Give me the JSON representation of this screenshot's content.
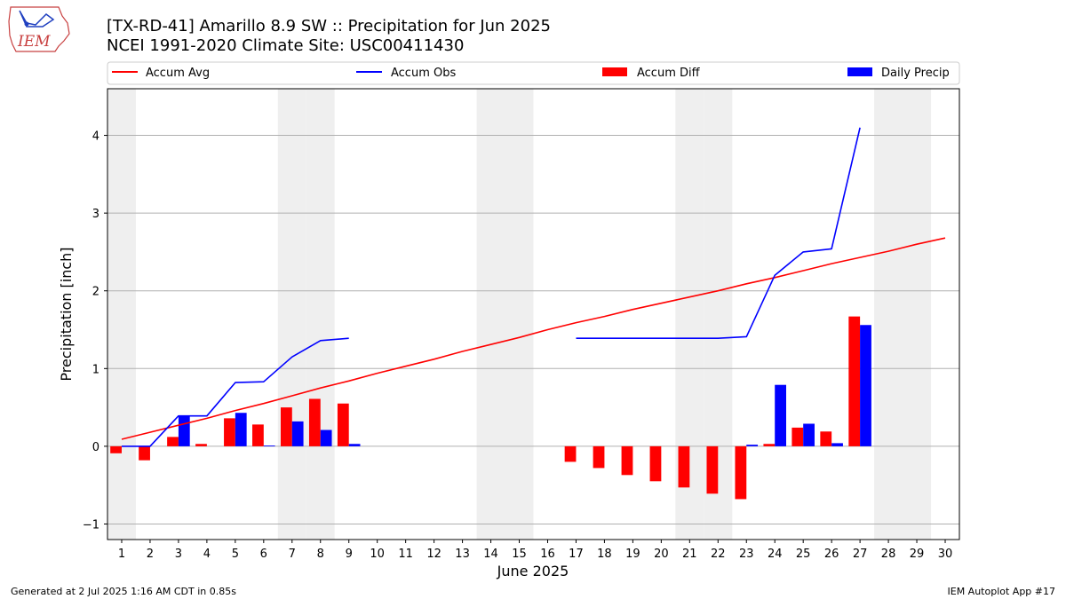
{
  "header": {
    "title_line1": "[TX-RD-41] Amarillo 8.9 SW :: Precipitation for Jun 2025",
    "title_line2": "NCEI 1991-2020 Climate Site: USC00411430",
    "logo_text": "IEM"
  },
  "footer": {
    "left": "Generated at 2 Jul 2025 1:16 AM CDT in 0.85s",
    "right": "IEM Autoplot App #17"
  },
  "colors": {
    "avg": "#ff0000",
    "obs": "#0000ff",
    "diff": "#ff0000",
    "daily": "#0000ff",
    "weekend": "#efefef",
    "grid": "#b0b0b0"
  },
  "chart_data": {
    "type": "bar",
    "xlabel": "June 2025",
    "ylabel": "Precipitation [inch]",
    "ylim": [
      -1.2,
      4.6
    ],
    "xlim": [
      0.5,
      30.5
    ],
    "yticks": [
      -1,
      0,
      1,
      2,
      3,
      4
    ],
    "days": [
      1,
      2,
      3,
      4,
      5,
      6,
      7,
      8,
      9,
      10,
      11,
      12,
      13,
      14,
      15,
      16,
      17,
      18,
      19,
      20,
      21,
      22,
      23,
      24,
      25,
      26,
      27,
      28,
      29,
      30
    ],
    "weekend_days": [
      1,
      7,
      8,
      14,
      15,
      21,
      22,
      28,
      29
    ],
    "grid": "horizontal",
    "legend": {
      "placement": "top",
      "entries": [
        "Accum Avg",
        "Accum Obs",
        "Accum Diff",
        "Daily Precip"
      ]
    },
    "series": [
      {
        "name": "Accum Avg",
        "kind": "line",
        "x": [
          1,
          2,
          3,
          4,
          5,
          6,
          7,
          8,
          9,
          10,
          11,
          12,
          13,
          14,
          15,
          16,
          17,
          18,
          19,
          20,
          21,
          22,
          23,
          24,
          25,
          26,
          27,
          28,
          29,
          30
        ],
        "values": [
          0.09,
          0.18,
          0.27,
          0.36,
          0.46,
          0.55,
          0.65,
          0.75,
          0.84,
          0.94,
          1.03,
          1.12,
          1.22,
          1.31,
          1.4,
          1.5,
          1.59,
          1.67,
          1.76,
          1.84,
          1.92,
          2.0,
          2.09,
          2.17,
          2.26,
          2.35,
          2.43,
          2.51,
          2.6,
          2.68
        ]
      },
      {
        "name": "Accum Obs",
        "kind": "line",
        "x": [
          1,
          2,
          3,
          4,
          5,
          6,
          7,
          8,
          9,
          10,
          11,
          12,
          13,
          14,
          15,
          16,
          17,
          18,
          19,
          20,
          21,
          22,
          23,
          24,
          25,
          26,
          27
        ],
        "values": [
          0.0,
          0.0,
          0.39,
          0.39,
          0.82,
          0.83,
          1.15,
          1.36,
          1.39,
          null,
          null,
          null,
          null,
          null,
          null,
          null,
          1.39,
          1.39,
          1.39,
          1.39,
          1.39,
          1.39,
          1.41,
          2.2,
          2.5,
          2.54,
          4.1
        ]
      },
      {
        "name": "Accum Diff",
        "kind": "bar",
        "x": [
          1,
          2,
          3,
          4,
          5,
          6,
          7,
          8,
          9,
          17,
          18,
          19,
          20,
          21,
          22,
          23,
          24,
          25,
          26,
          27
        ],
        "values": [
          -0.09,
          -0.18,
          0.12,
          0.03,
          0.36,
          0.28,
          0.5,
          0.61,
          0.55,
          -0.2,
          -0.28,
          -0.37,
          -0.45,
          -0.53,
          -0.61,
          -0.68,
          0.03,
          0.24,
          0.19,
          1.67
        ]
      },
      {
        "name": "Daily Precip",
        "kind": "bar",
        "x": [
          3,
          5,
          6,
          7,
          8,
          9,
          23,
          24,
          25,
          26,
          27
        ],
        "values": [
          0.39,
          0.43,
          0.01,
          0.32,
          0.21,
          0.03,
          0.02,
          0.79,
          0.29,
          0.04,
          1.56
        ]
      }
    ]
  }
}
